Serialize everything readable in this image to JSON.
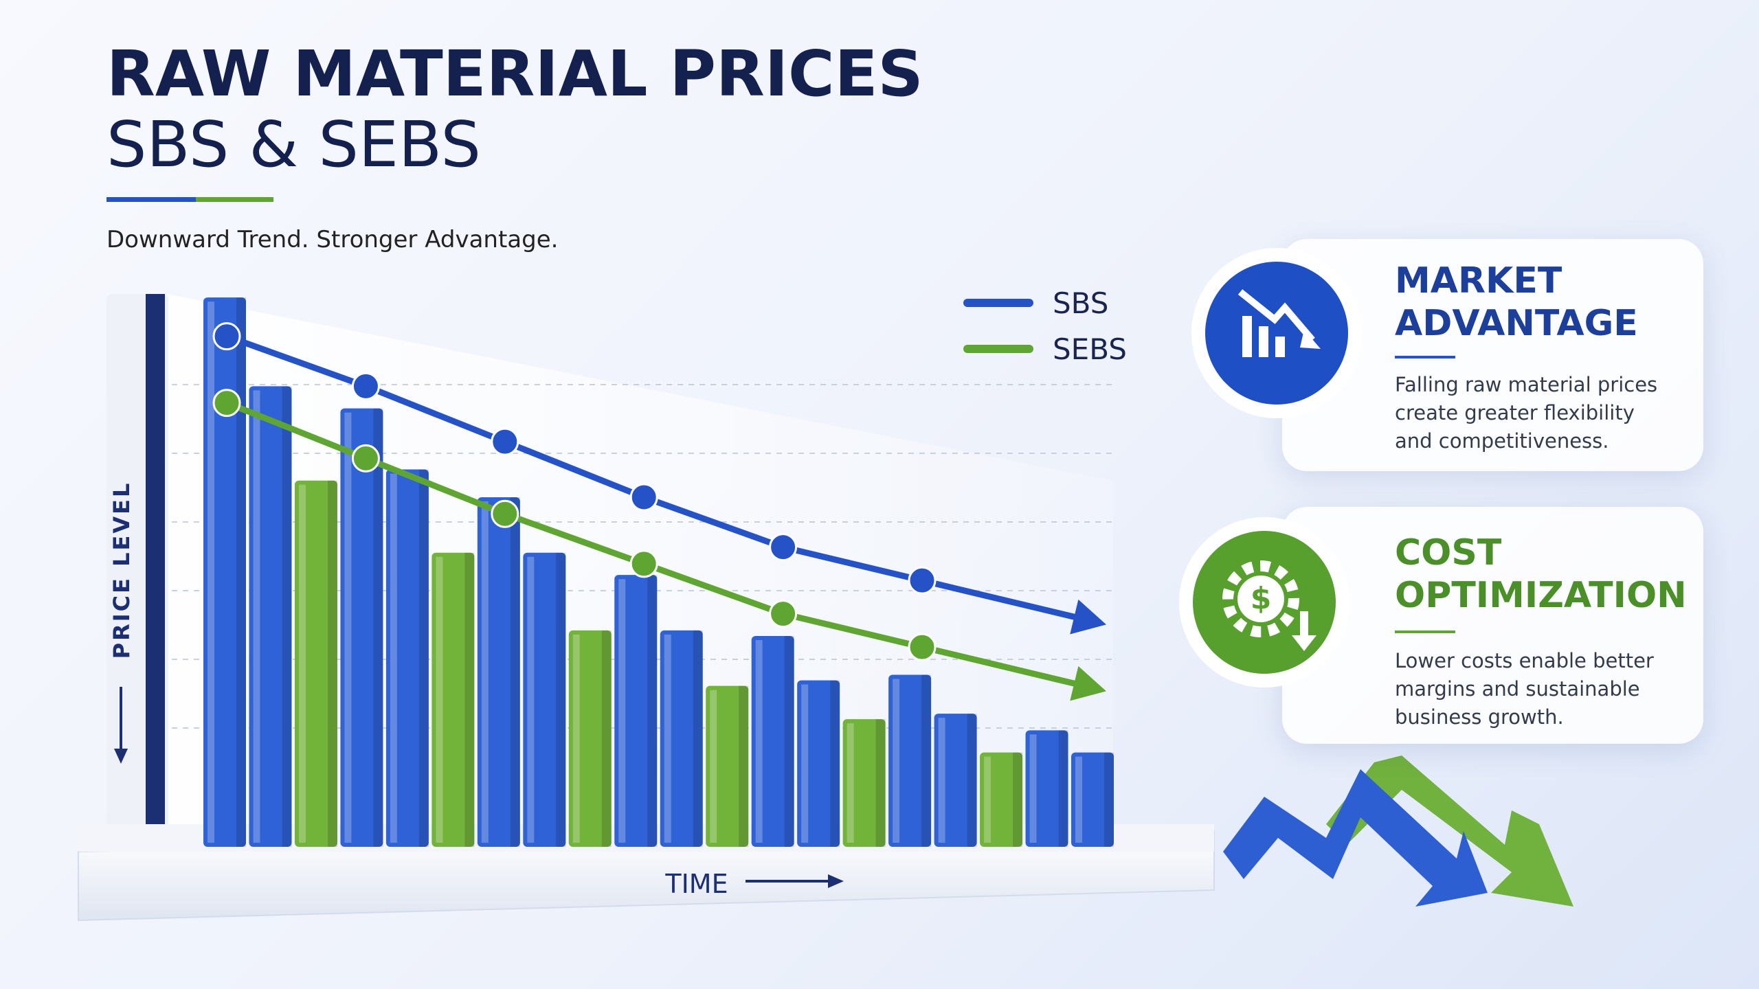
{
  "header": {
    "title": "RAW MATERIAL PRICES",
    "subtitle": "SBS & SEBS",
    "tagline": "Downward Trend. Stronger Advantage."
  },
  "cards": [
    {
      "title_lines": [
        "MARKET",
        "ADVANTAGE"
      ],
      "body_lines": [
        "Falling raw material prices",
        "create greater flexibility",
        "and competitiveness."
      ]
    },
    {
      "title_lines": [
        "COST",
        "OPTIMIZATION"
      ],
      "body_lines": [
        "Lower costs enable better",
        "margins and sustainable",
        "business growth."
      ]
    }
  ],
  "chart_data": [
    {
      "type": "line",
      "x_label": "TIME",
      "y_label": "PRICE LEVEL",
      "categories": [
        null,
        null,
        null,
        null,
        null,
        null
      ],
      "ylim": [
        0,
        100
      ],
      "series": [
        {
          "name": "SBS",
          "color": "#2553c7",
          "values": [
            92,
            83,
            73,
            63,
            54,
            48
          ]
        },
        {
          "name": "SEBS",
          "color": "#5fa532",
          "values": [
            80,
            70,
            60,
            51,
            42,
            36
          ]
        }
      ]
    },
    {
      "type": "bar",
      "categories": [
        null,
        null,
        null,
        null,
        null,
        null,
        null,
        null,
        null,
        null,
        null,
        null,
        null,
        null,
        null,
        null,
        null,
        null,
        null,
        null
      ],
      "ylim": [
        0,
        100
      ],
      "series": [
        {
          "name": "SBS",
          "color": "#2f62d6",
          "values": [
            99,
            83,
            null,
            79,
            68,
            null,
            63,
            53,
            null,
            49,
            39,
            null,
            38,
            30,
            null,
            31,
            24,
            null,
            21,
            17
          ]
        },
        {
          "name": "SEBS",
          "color": "#72b33a",
          "values": [
            null,
            null,
            66,
            null,
            null,
            53,
            null,
            null,
            39,
            null,
            null,
            29,
            null,
            null,
            23,
            null,
            null,
            17,
            null,
            null
          ]
        }
      ]
    }
  ]
}
